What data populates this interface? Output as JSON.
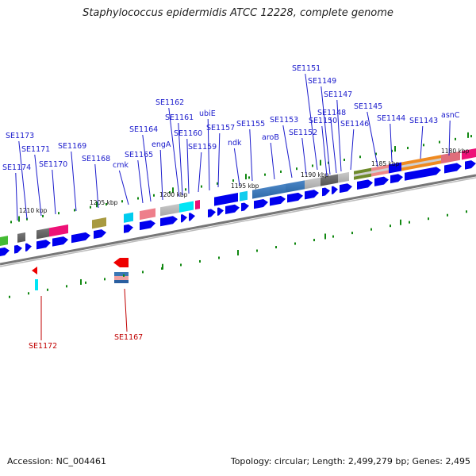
{
  "title": "Staphylococcus epidermidis ATCC 12228, complete genome",
  "footer": {
    "accession": "Accession: NC_004461",
    "topology": "Topology: circular; Length: 2,499,279 bp; Genes: 2,495"
  },
  "scale_labels": [
    "1210 kbp",
    "1205 kbp",
    "1200 kbp",
    "1195 kbp",
    "1190 kbp",
    "1185 kbp",
    "1180 kbp"
  ],
  "forward_genes": [
    "SE1174",
    "SE1173",
    "SE1171",
    "SE1170",
    "SE1169",
    "SE1168",
    "cmk",
    "SE1165",
    "SE1164",
    "engA",
    "SE1162",
    "SE1161",
    "SE1160",
    "SE1159",
    "ubiE",
    "SE1157",
    "ndk",
    "SE1155",
    "aroB",
    "SE1153",
    "SE1152",
    "SE1151",
    "SE1150",
    "SE1149",
    "SE1148",
    "SE1147",
    "SE1146",
    "SE1145",
    "SE1144",
    "SE1143",
    "asnC"
  ],
  "reverse_genes": [
    "SE1172",
    "SE1167"
  ],
  "colors": {
    "forward_label": "#1a1acc",
    "reverse_label": "#c00000",
    "cds": "#0000ee",
    "backbone": "#888888",
    "tick": "#118811"
  }
}
